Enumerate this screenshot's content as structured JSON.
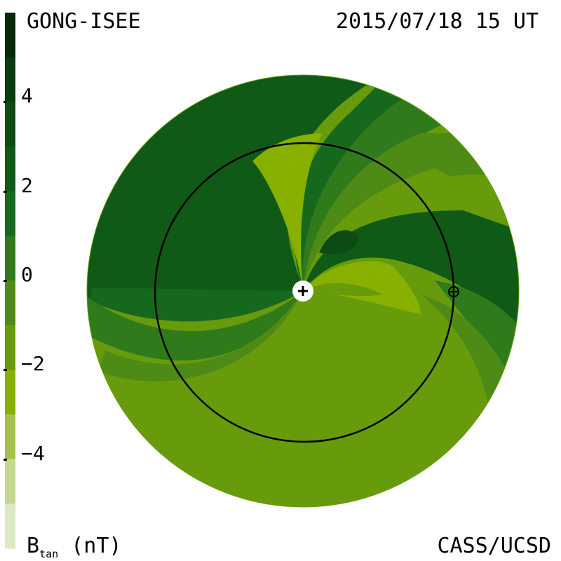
{
  "header": {
    "source": "GONG-ISEE",
    "timestamp": "2015/07/18 15 UT"
  },
  "footer": {
    "quantity": "B",
    "quantity_sub": "tan",
    "unit": "(nT)",
    "credit": "CASS/UCSD"
  },
  "chart_data": {
    "type": "heatmap",
    "projection": "polar ecliptic view, Sun at center, Earth orbit shown",
    "colorbar": {
      "ticks": [
        4,
        2,
        0,
        -2,
        -4
      ],
      "tick_labels": [
        "4",
        "2",
        "0",
        "−2",
        "−4"
      ],
      "range": [
        -6,
        6
      ],
      "levels": [
        {
          "min": 5,
          "max": 6,
          "color": "#07290a"
        },
        {
          "min": 4,
          "max": 5,
          "color": "#0b3c10"
        },
        {
          "min": 3,
          "max": 4,
          "color": "#0d4a14"
        },
        {
          "min": 2,
          "max": 3,
          "color": "#0f5a17"
        },
        {
          "min": 1,
          "max": 2,
          "color": "#16691c"
        },
        {
          "min": 0,
          "max": 1,
          "color": "#2f7b1c"
        },
        {
          "min": -1,
          "max": 0,
          "color": "#4d8b16"
        },
        {
          "min": -2,
          "max": -1,
          "color": "#679b0c"
        },
        {
          "min": -3,
          "max": -2,
          "color": "#88b000"
        },
        {
          "min": -4,
          "max": -3,
          "color": "#a5c34c"
        },
        {
          "min": -5,
          "max": -4,
          "color": "#c4d88e"
        },
        {
          "min": -6,
          "max": -5,
          "color": "#dde8c4"
        }
      ]
    },
    "markers": [
      {
        "name": "Sun",
        "symbol": "+"
      },
      {
        "name": "Earth",
        "symbol": "⊕"
      }
    ],
    "grid": false
  }
}
